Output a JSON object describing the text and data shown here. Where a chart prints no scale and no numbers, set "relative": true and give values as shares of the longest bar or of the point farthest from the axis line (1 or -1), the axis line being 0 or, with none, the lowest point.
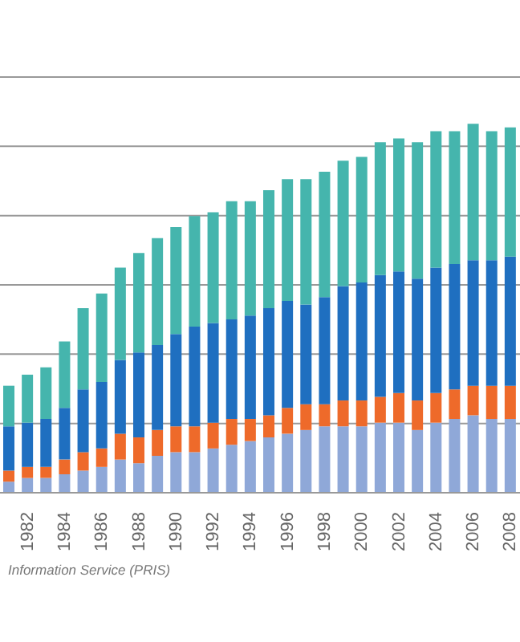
{
  "chart_data": {
    "type": "bar",
    "stacked": true,
    "relative": true,
    "grid": "y",
    "legend": false,
    "categories": [
      null,
      "1982",
      null,
      "1984",
      null,
      "1986",
      null,
      "1988",
      null,
      "1990",
      null,
      "1992",
      null,
      "1994",
      null,
      "1996",
      null,
      "1998",
      null,
      "2000",
      null,
      "2002",
      null,
      "2004",
      null,
      "2006",
      null,
      "2008"
    ],
    "series": [
      {
        "color": "#8fa8d8",
        "values": [
          0.03,
          0.04,
          0.04,
          0.05,
          0.06,
          0.07,
          0.09,
          0.08,
          0.1,
          0.11,
          0.11,
          0.12,
          0.13,
          0.14,
          0.15,
          0.16,
          0.17,
          0.18,
          0.18,
          0.18,
          0.19,
          0.19,
          0.17,
          0.19,
          0.2,
          0.21,
          0.2,
          0.2
        ]
      },
      {
        "color": "#ee6a2a",
        "values": [
          0.03,
          0.03,
          0.03,
          0.04,
          0.05,
          0.05,
          0.07,
          0.07,
          0.07,
          0.07,
          0.07,
          0.07,
          0.07,
          0.06,
          0.06,
          0.07,
          0.07,
          0.06,
          0.07,
          0.07,
          0.07,
          0.08,
          0.08,
          0.08,
          0.08,
          0.08,
          0.09,
          0.09
        ]
      },
      {
        "color": "#1f6fc0",
        "values": [
          0.12,
          0.12,
          0.13,
          0.14,
          0.17,
          0.18,
          0.2,
          0.23,
          0.23,
          0.25,
          0.27,
          0.27,
          0.27,
          0.28,
          0.29,
          0.29,
          0.27,
          0.29,
          0.31,
          0.32,
          0.33,
          0.33,
          0.33,
          0.34,
          0.34,
          0.34,
          0.34,
          0.35
        ]
      },
      {
        "color": "#45b5ad",
        "values": [
          0.11,
          0.13,
          0.14,
          0.18,
          0.22,
          0.24,
          0.25,
          0.27,
          0.29,
          0.29,
          0.3,
          0.3,
          0.32,
          0.31,
          0.32,
          0.33,
          0.34,
          0.34,
          0.34,
          0.34,
          0.36,
          0.36,
          0.37,
          0.37,
          0.36,
          0.37,
          0.35,
          0.35
        ]
      }
    ],
    "annotations": [
      "Information Service (PRIS)"
    ]
  }
}
